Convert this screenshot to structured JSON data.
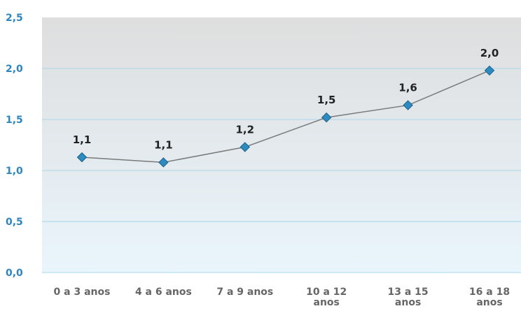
{
  "chart_data": {
    "type": "line",
    "title": "",
    "xlabel": "",
    "ylabel": "",
    "categories": [
      "0 a 3 anos",
      "4 a 6 anos",
      "7 a 9 anos",
      "10 a 12 anos",
      "13 a 15 anos",
      "16 a 18 anos"
    ],
    "category_lines": [
      [
        "0 a 3 anos"
      ],
      [
        "4 a 6 anos"
      ],
      [
        "7 a 9 anos"
      ],
      [
        "10 a 12",
        "anos"
      ],
      [
        "13 a 15",
        "anos"
      ],
      [
        "16 a 18",
        "anos"
      ]
    ],
    "values": [
      1.13,
      1.08,
      1.23,
      1.52,
      1.64,
      1.98
    ],
    "data_labels": [
      "1,1",
      "1,1",
      "1,2",
      "1,5",
      "1,6",
      "2,0"
    ],
    "ylim": [
      0,
      2.5
    ],
    "yticks": [
      0,
      0.5,
      1.0,
      1.5,
      2.0,
      2.5
    ],
    "ytick_labels": [
      "0,0",
      "0,5",
      "1,0",
      "1,5",
      "2,0",
      "2,5"
    ],
    "grid": true,
    "legend": "none",
    "colors": {
      "line": "#7a7a7a",
      "marker": "#2e8bc0",
      "marker_stroke": "#1b5f87",
      "grid": "#a9d6ea",
      "ytick": "#2e86c1",
      "xtick": "#666666",
      "bg_top": "#dedede",
      "bg_bottom": "#e9f5fc"
    }
  }
}
